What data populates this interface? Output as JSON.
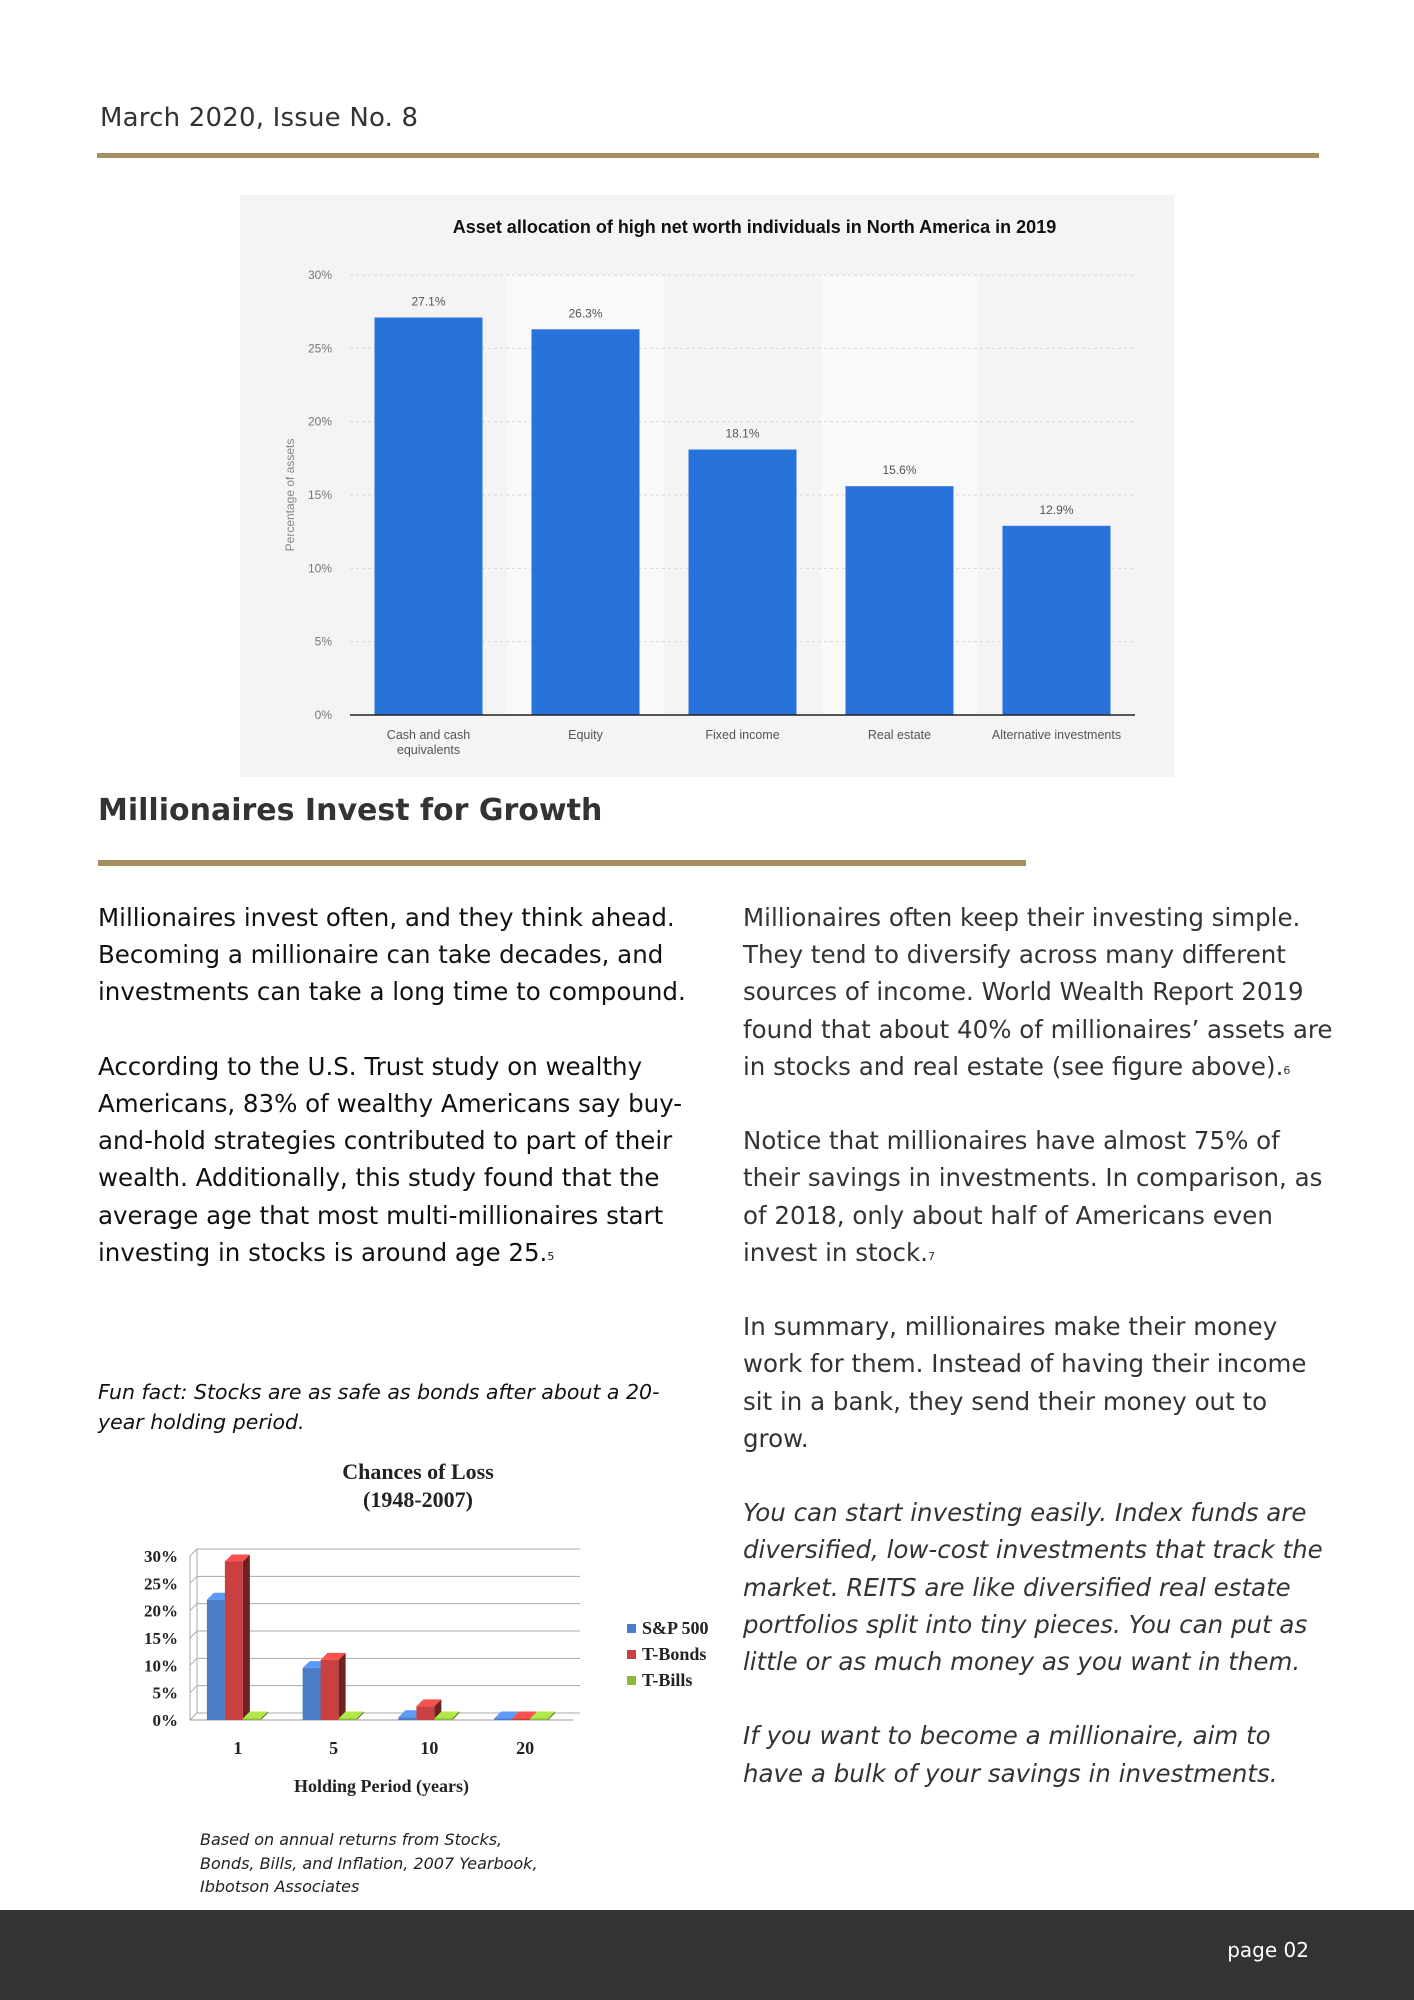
{
  "header": {
    "issue": "March 2020, Issue No. 8"
  },
  "figure1": {
    "chart_data": {
      "type": "bar",
      "title": "Asset allocation of high net worth individuals in North America in 2019",
      "ylabel": "Percentage of assets",
      "xlabel": "",
      "categories": [
        "Cash and cash equivalents",
        "Equity",
        "Fixed income",
        "Real estate",
        "Alternative investments"
      ],
      "category_lines": [
        [
          "Cash and cash",
          "equivalents"
        ],
        [
          "Equity"
        ],
        [
          "Fixed income"
        ],
        [
          "Real estate"
        ],
        [
          "Alternative investments"
        ]
      ],
      "values": [
        27.1,
        26.3,
        18.1,
        15.6,
        12.9
      ],
      "value_labels": [
        "27.1%",
        "26.3%",
        "18.1%",
        "15.6%",
        "12.9%"
      ],
      "yticks": [
        "0%",
        "5%",
        "10%",
        "15%",
        "20%",
        "25%",
        "30%"
      ],
      "ylim": [
        0,
        30
      ],
      "grid": true,
      "bar_color": "#2872dc"
    }
  },
  "article": {
    "title": "Millionaires Invest for Growth",
    "left": {
      "p1": "Millionaires invest often, and they think ahead. Becoming a millionaire can take decades, and investments can take a long time to compound.",
      "p2": "According to the U.S. Trust study on wealthy Americans, 83% of wealthy Americans say buy-and-hold strategies contributed to part of their wealth. Additionally, this study found that the average age that most multi-millionaires start investing in stocks is around age 25.",
      "p2_note": "5",
      "funfact": "Fun fact:  Stocks are as safe as bonds after about a 20-year holding period."
    },
    "right": {
      "p1": "Millionaires often keep their investing simple. They tend to diversify across many different sources of income. World Wealth Report 2019 found that about 40% of millionaires’ assets are in stocks and real estate (see figure above).",
      "p1_note": "6",
      "p2": "Notice that millionaires have almost 75% of their savings in investments. In comparison, as of 2018, only about half of Americans even invest in stock.",
      "p2_note": "7",
      "p3": "In summary, millionaires make their money work for them. Instead of having their income sit in a bank, they send their money out to grow.",
      "p4": "You can start investing easily. Index funds are diversified, low-cost investments that track the market. REITS are like diversified real estate portfolios split into tiny pieces. You can put as little or as much money as you want in them.",
      "p5": "If you want to become a millionaire, aim to have a bulk of your savings in investments."
    }
  },
  "figure2": {
    "chart_data": {
      "type": "bar",
      "title": "Chances of Loss",
      "subtitle": "(1948-2007)",
      "xlabel": "Holding Period (years)",
      "ylabel": "",
      "categories": [
        "1",
        "5",
        "10",
        "20"
      ],
      "yticks": [
        "0%",
        "5%",
        "10%",
        "15%",
        "20%",
        "25%",
        "30%"
      ],
      "ylim": [
        0,
        30
      ],
      "series": [
        {
          "name": "S&P 500",
          "values": [
            22,
            9.5,
            0.5,
            0
          ],
          "color": "#4a7cc7"
        },
        {
          "name": "T-Bonds",
          "values": [
            29,
            11,
            2.5,
            0
          ],
          "color": "#c84040"
        },
        {
          "name": "T-Bills",
          "values": [
            0,
            0,
            0,
            0
          ],
          "color": "#8dba3a"
        }
      ],
      "legend": "right",
      "grid": true
    },
    "caption": "Based on annual returns from Stocks, Bonds, Bills, and Inflation, 2007 Yearbook, Ibbotson Associates"
  },
  "footer": {
    "page": "page 02"
  }
}
